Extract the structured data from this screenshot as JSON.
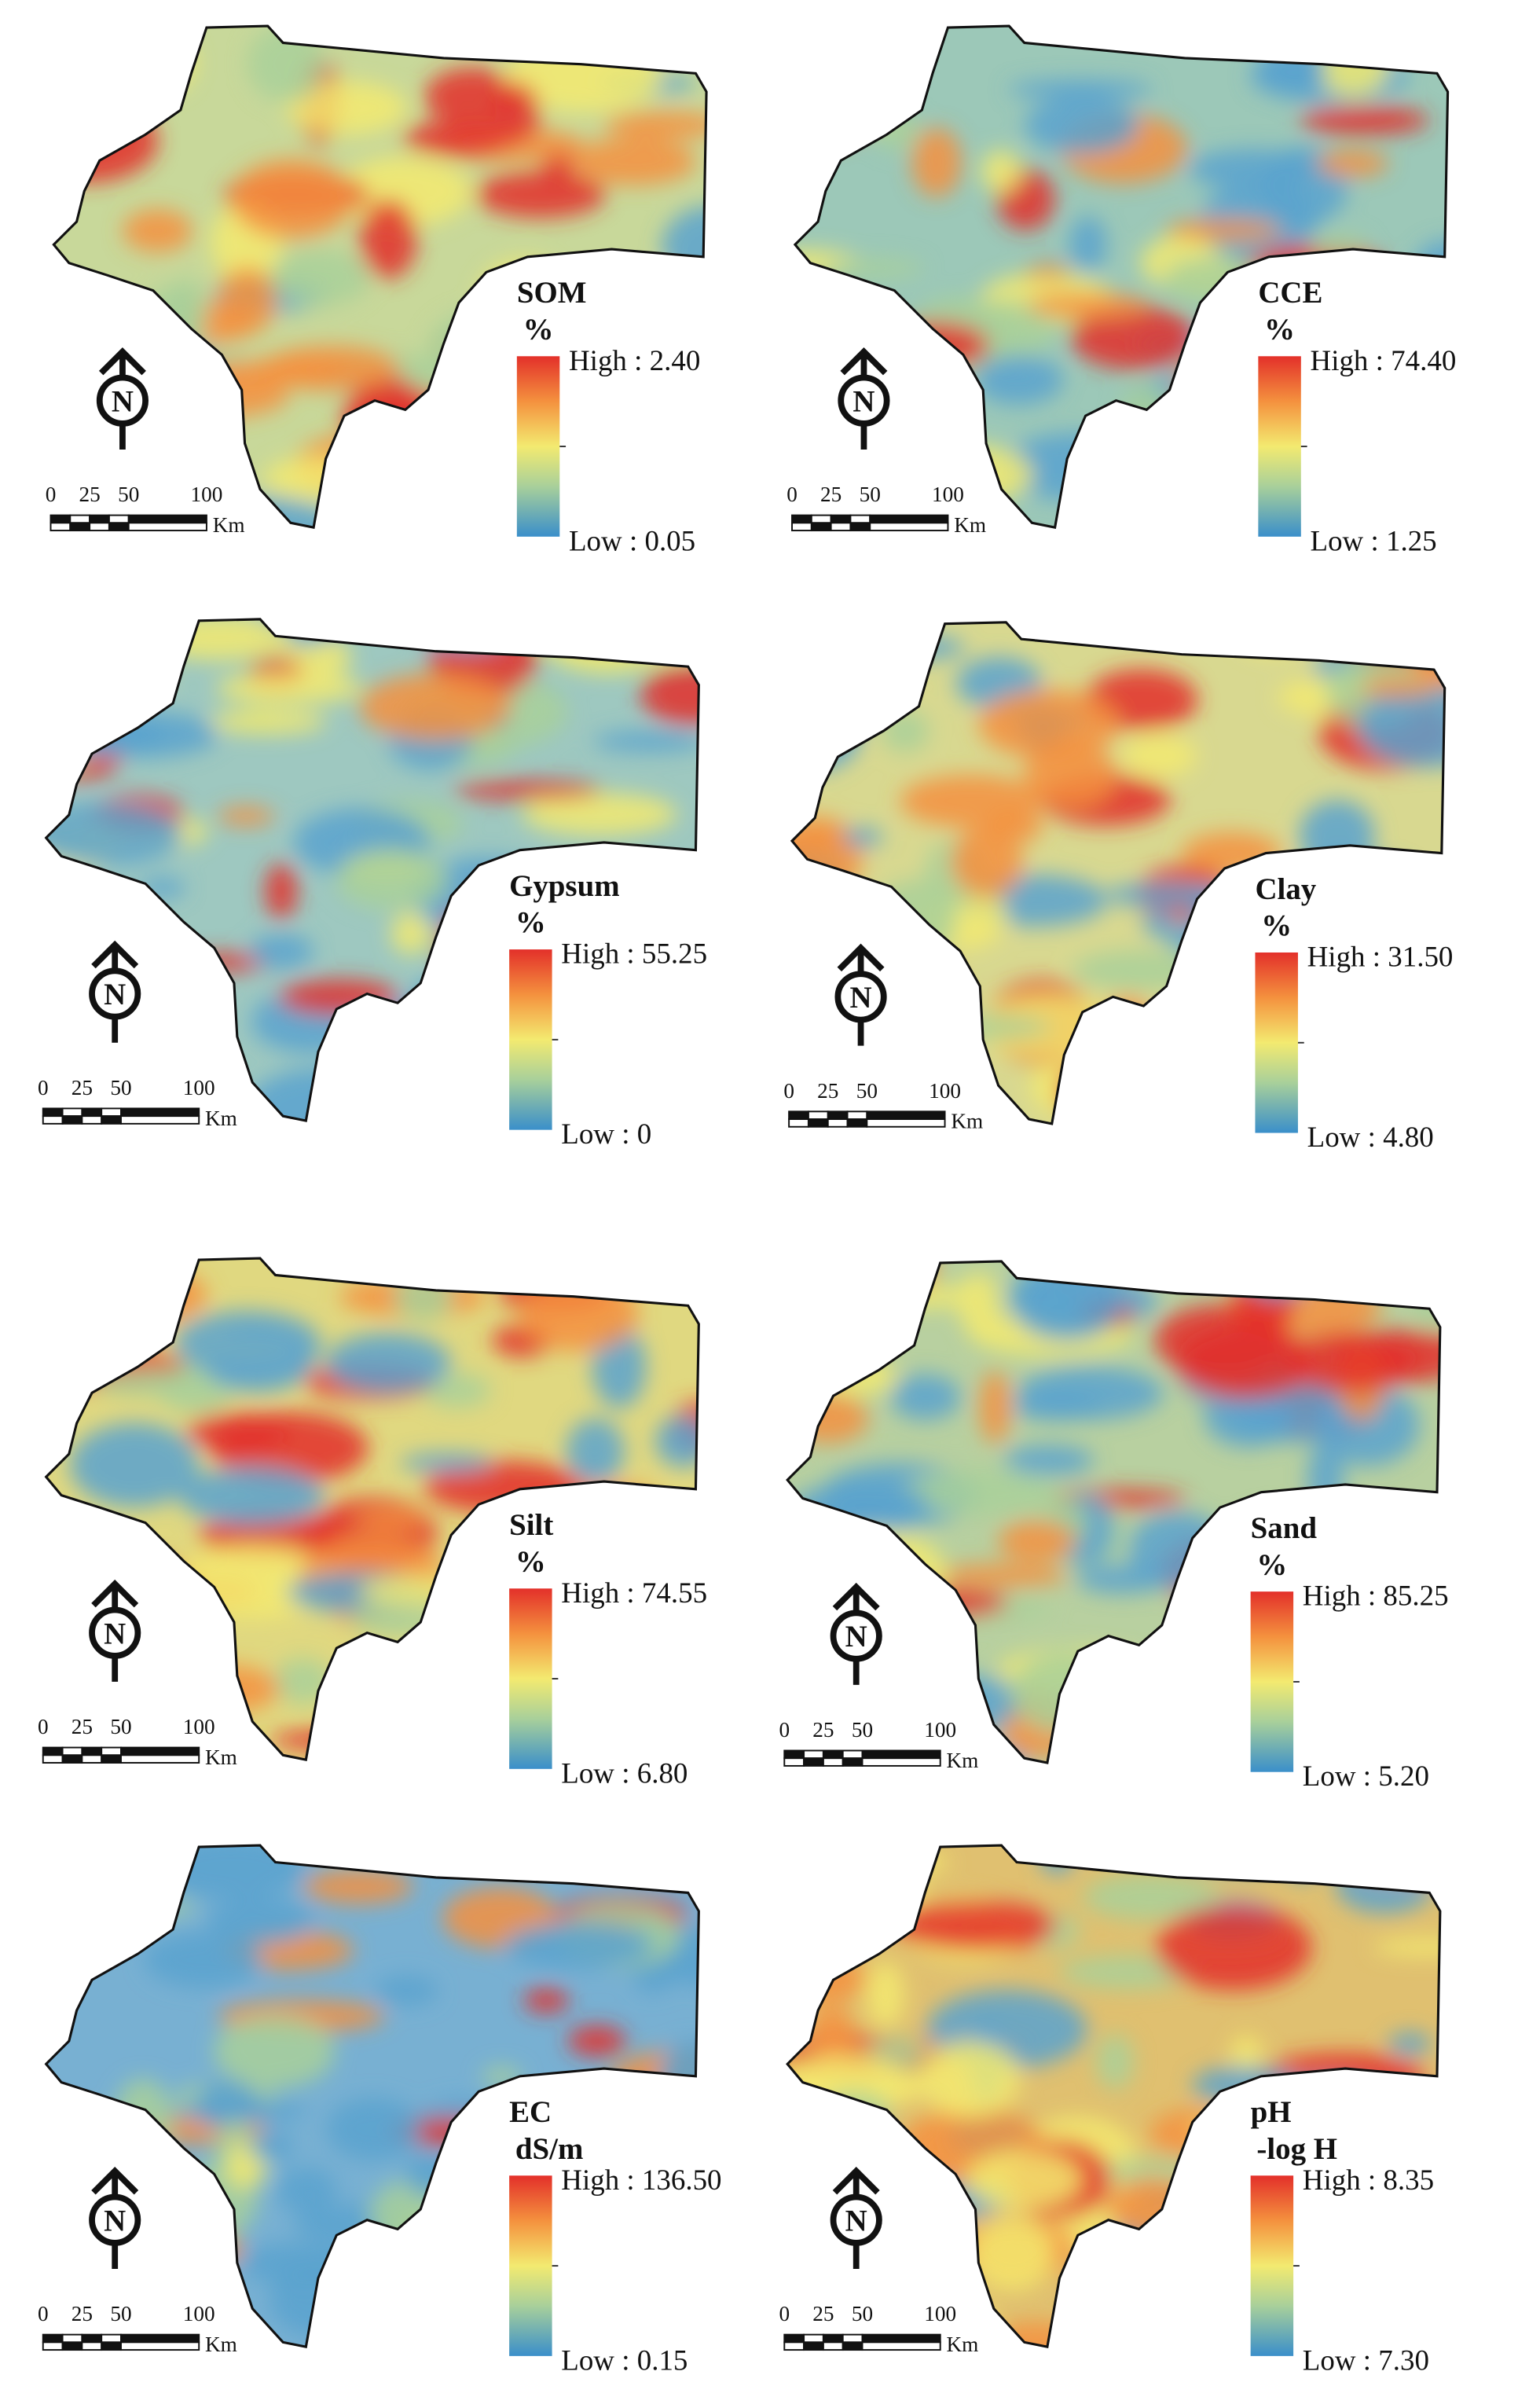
{
  "panels": [
    {
      "title": "SOM",
      "unit": "%",
      "high": "High : 2.40",
      "low": "Low : 0.05"
    },
    {
      "title": "CCE",
      "unit": "%",
      "high": "High : 74.40",
      "low": "Low : 1.25"
    },
    {
      "title": "Gypsum",
      "unit": "%",
      "high": "High : 55.25",
      "low": "Low : 0"
    },
    {
      "title": "Clay",
      "unit": "%",
      "high": "High : 31.50",
      "low": "Low : 4.80"
    },
    {
      "title": "Silt",
      "unit": "%",
      "high": "High : 74.55",
      "low": "Low : 6.80"
    },
    {
      "title": "Sand",
      "unit": "%",
      "high": "High : 85.25",
      "low": "Low : 5.20"
    },
    {
      "title": "EC",
      "unit": "dS/m",
      "high": "High : 136.50",
      "low": "Low : 0.15"
    },
    {
      "title": "pH",
      "unit": "-log H",
      "high": "High : 8.35",
      "low": "Low : 7.30"
    }
  ],
  "scale_bar": {
    "ticks": [
      "0",
      "25",
      "50",
      "100"
    ],
    "unit": "Km"
  },
  "north_label": "N"
}
